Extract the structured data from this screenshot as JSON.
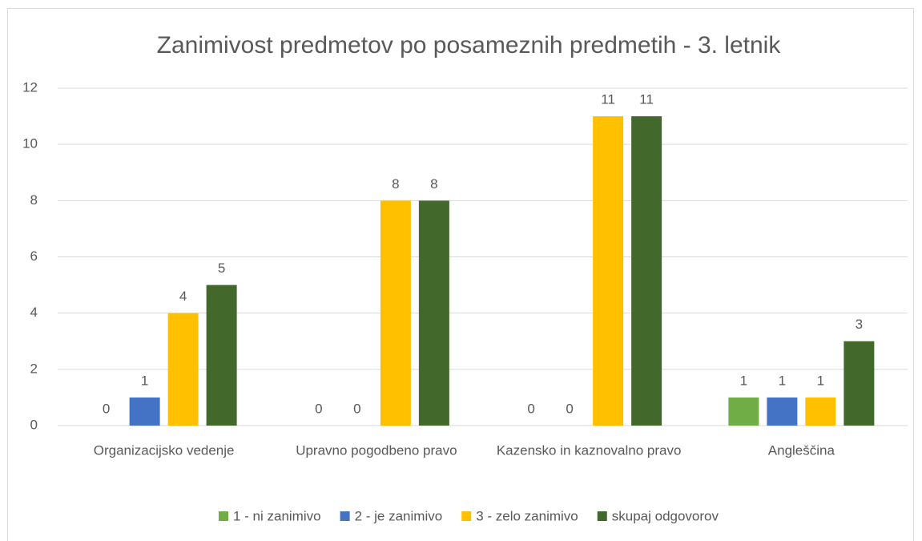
{
  "chart_data": {
    "type": "bar",
    "title": "Zanimivost predmetov po posameznih predmetih - 3. letnik",
    "categories": [
      "Organizacijsko vedenje",
      "Upravno pogodbeno pravo",
      "Kazensko in kaznovalno pravo",
      "Angleščina"
    ],
    "series": [
      {
        "name": "1 - ni zanimivo",
        "color": "#70ad47",
        "values": [
          0,
          0,
          0,
          1
        ]
      },
      {
        "name": "2 - je zanimivo",
        "color": "#4472c4",
        "values": [
          1,
          0,
          0,
          1
        ]
      },
      {
        "name": "3 - zelo zanimivo",
        "color": "#ffc000",
        "values": [
          4,
          8,
          11,
          1
        ]
      },
      {
        "name": "skupaj odgovorov",
        "color": "#43682b",
        "values": [
          5,
          8,
          11,
          3
        ]
      }
    ],
    "ylim": [
      0,
      12
    ],
    "yticks": [
      0,
      2,
      4,
      6,
      8,
      10,
      12
    ],
    "grid": true,
    "legend": "bottom"
  }
}
